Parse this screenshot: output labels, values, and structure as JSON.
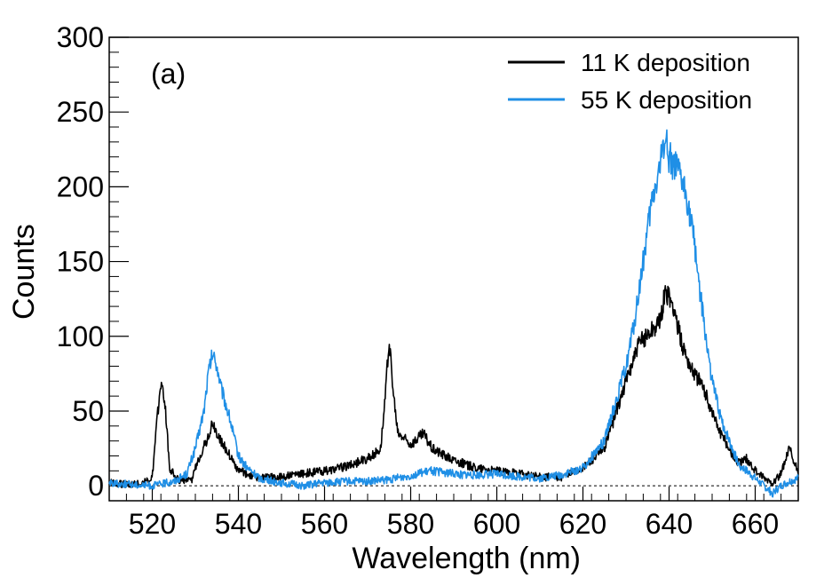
{
  "chart_data": {
    "type": "line",
    "panel_label": "(a)",
    "xlabel": "Wavelength (nm)",
    "ylabel": "Counts",
    "xlim": [
      510,
      670
    ],
    "ylim": [
      -10,
      300
    ],
    "x_ticks": [
      520,
      540,
      560,
      580,
      600,
      620,
      640,
      660
    ],
    "y_ticks": [
      0,
      50,
      100,
      150,
      200,
      250,
      300
    ],
    "zero_reference_line": true,
    "grid": false,
    "legend_position": "top-right",
    "series": [
      {
        "name": "11 K deposition",
        "color": "#000000",
        "points": [
          [
            510,
            2
          ],
          [
            514,
            1
          ],
          [
            518,
            2
          ],
          [
            520,
            5
          ],
          [
            521,
            40
          ],
          [
            522,
            70
          ],
          [
            523,
            55
          ],
          [
            524,
            12
          ],
          [
            526,
            4
          ],
          [
            529,
            3
          ],
          [
            531,
            20
          ],
          [
            533,
            33
          ],
          [
            534,
            42
          ],
          [
            535,
            35
          ],
          [
            537,
            25
          ],
          [
            540,
            10
          ],
          [
            545,
            5
          ],
          [
            550,
            6
          ],
          [
            555,
            8
          ],
          [
            560,
            10
          ],
          [
            565,
            13
          ],
          [
            570,
            18
          ],
          [
            573,
            25
          ],
          [
            574,
            55
          ],
          [
            575,
            98
          ],
          [
            576,
            60
          ],
          [
            577,
            35
          ],
          [
            580,
            28
          ],
          [
            583,
            35
          ],
          [
            585,
            25
          ],
          [
            590,
            17
          ],
          [
            595,
            12
          ],
          [
            600,
            10
          ],
          [
            605,
            8
          ],
          [
            610,
            6
          ],
          [
            615,
            6
          ],
          [
            620,
            12
          ],
          [
            625,
            25
          ],
          [
            630,
            70
          ],
          [
            633,
            95
          ],
          [
            636,
            105
          ],
          [
            638,
            110
          ],
          [
            639,
            130
          ],
          [
            641,
            120
          ],
          [
            643,
            95
          ],
          [
            645,
            80
          ],
          [
            648,
            65
          ],
          [
            650,
            50
          ],
          [
            652,
            35
          ],
          [
            654,
            25
          ],
          [
            656,
            15
          ],
          [
            658,
            18
          ],
          [
            660,
            10
          ],
          [
            662,
            5
          ],
          [
            664,
            2
          ],
          [
            666,
            8
          ],
          [
            668,
            25
          ],
          [
            669,
            15
          ],
          [
            670,
            10
          ]
        ]
      },
      {
        "name": "55 K deposition",
        "color": "#1f8fe6",
        "points": [
          [
            510,
            2
          ],
          [
            515,
            1
          ],
          [
            520,
            0
          ],
          [
            525,
            3
          ],
          [
            528,
            8
          ],
          [
            530,
            25
          ],
          [
            532,
            50
          ],
          [
            533,
            75
          ],
          [
            534,
            88
          ],
          [
            535,
            80
          ],
          [
            536,
            65
          ],
          [
            538,
            45
          ],
          [
            540,
            20
          ],
          [
            542,
            12
          ],
          [
            545,
            5
          ],
          [
            550,
            2
          ],
          [
            555,
            0
          ],
          [
            560,
            2
          ],
          [
            565,
            3
          ],
          [
            570,
            3
          ],
          [
            575,
            4
          ],
          [
            580,
            7
          ],
          [
            585,
            10
          ],
          [
            590,
            8
          ],
          [
            595,
            7
          ],
          [
            600,
            8
          ],
          [
            605,
            6
          ],
          [
            610,
            5
          ],
          [
            615,
            7
          ],
          [
            620,
            12
          ],
          [
            625,
            30
          ],
          [
            628,
            60
          ],
          [
            630,
            80
          ],
          [
            632,
            110
          ],
          [
            634,
            150
          ],
          [
            636,
            190
          ],
          [
            638,
            215
          ],
          [
            639,
            235
          ],
          [
            640,
            220
          ],
          [
            642,
            210
          ],
          [
            644,
            195
          ],
          [
            646,
            160
          ],
          [
            648,
            110
          ],
          [
            650,
            70
          ],
          [
            652,
            45
          ],
          [
            654,
            30
          ],
          [
            656,
            15
          ],
          [
            658,
            10
          ],
          [
            660,
            5
          ],
          [
            662,
            0
          ],
          [
            664,
            -5
          ],
          [
            666,
            0
          ],
          [
            668,
            3
          ],
          [
            670,
            5
          ]
        ]
      }
    ]
  }
}
